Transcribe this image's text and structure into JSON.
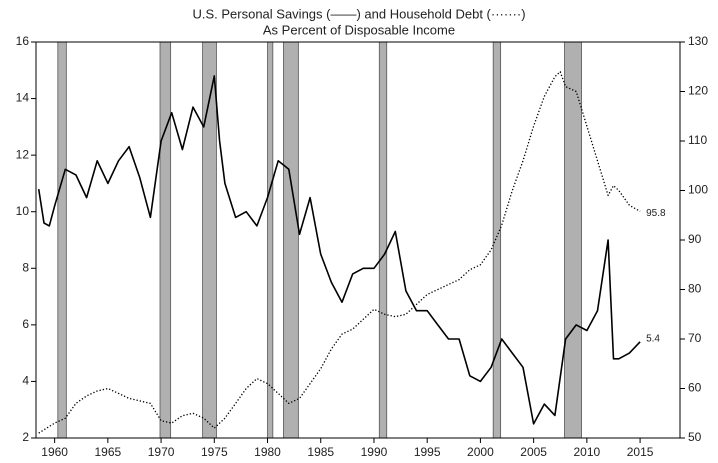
{
  "chart_data": {
    "type": "line",
    "title": "U.S. Personal Savings (——) and Household Debt (·······)",
    "subtitle": "As Percent of Disposable Income",
    "xlim": [
      1958.25,
      2018.75
    ],
    "xticks": [
      1960,
      1965,
      1970,
      1975,
      1980,
      1985,
      1990,
      1995,
      2000,
      2005,
      2010,
      2015
    ],
    "ylim": [
      2,
      16
    ],
    "yticks": [
      2,
      4,
      6,
      8,
      10,
      12,
      14,
      16
    ],
    "y2lim": [
      50,
      130
    ],
    "y2ticks": [
      50,
      60,
      70,
      80,
      90,
      100,
      110,
      120,
      130
    ],
    "recessions": [
      [
        1960.3,
        1961.1
      ],
      [
        1969.9,
        1970.9
      ],
      [
        1973.9,
        1975.2
      ],
      [
        1980.0,
        1980.5
      ],
      [
        1981.5,
        1982.9
      ],
      [
        1990.5,
        1991.2
      ],
      [
        2001.2,
        2001.9
      ],
      [
        2007.9,
        2009.5
      ]
    ],
    "series": [
      {
        "name": "U.S. Personal Savings",
        "color": "#000000",
        "style": "solid",
        "axis": "y",
        "x": [
          1958.5,
          1959,
          1959.5,
          1960,
          1961,
          1962,
          1963,
          1964,
          1965,
          1966,
          1967,
          1968,
          1969,
          1970,
          1971,
          1972,
          1973,
          1974,
          1975,
          1975.5,
          1976,
          1977,
          1978,
          1979,
          1980,
          1981,
          1982,
          1983,
          1984,
          1985,
          1986,
          1987,
          1988,
          1989,
          1990,
          1991,
          1992,
          1993,
          1994,
          1995,
          1996,
          1997,
          1998,
          1999,
          2000,
          2001,
          2002,
          2003,
          2004,
          2005,
          2006,
          2007,
          2008,
          2009,
          2010,
          2011,
          2012,
          2012.5,
          2013,
          2014,
          2015
        ],
        "values": [
          10.8,
          9.6,
          9.5,
          10.2,
          11.5,
          11.3,
          10.5,
          11.8,
          11.0,
          11.8,
          12.3,
          11.2,
          9.8,
          12.5,
          13.5,
          12.2,
          13.7,
          13.0,
          14.8,
          12.5,
          11.0,
          9.8,
          10.0,
          9.5,
          10.5,
          11.8,
          11.5,
          9.2,
          10.5,
          8.5,
          7.5,
          6.8,
          7.8,
          8.0,
          8.0,
          8.5,
          9.3,
          7.2,
          6.5,
          6.5,
          6.0,
          5.5,
          5.5,
          4.2,
          4.0,
          4.5,
          5.5,
          5.0,
          4.5,
          2.5,
          3.2,
          2.8,
          5.5,
          6.0,
          5.8,
          6.5,
          9.0,
          4.8,
          4.8,
          5.0,
          5.4
        ]
      },
      {
        "name": "Household Debt",
        "color": "#000000",
        "style": "dotted",
        "axis": "y2",
        "x": [
          1958.5,
          1960,
          1961,
          1962,
          1963,
          1964,
          1965,
          1966,
          1967,
          1968,
          1969,
          1970,
          1971,
          1972,
          1973,
          1974,
          1975,
          1976,
          1977,
          1978,
          1979,
          1980,
          1981,
          1982,
          1983,
          1984,
          1985,
          1986,
          1987,
          1988,
          1989,
          1990,
          1991,
          1992,
          1993,
          1994,
          1995,
          1996,
          1997,
          1998,
          1999,
          2000,
          2001,
          2002,
          2003,
          2004,
          2005,
          2006,
          2007,
          2007.5,
          2008,
          2009,
          2010,
          2011,
          2012,
          2012.5,
          2013,
          2014,
          2015
        ],
        "values": [
          51,
          53,
          54,
          57,
          58.5,
          59.5,
          60,
          59,
          58,
          57.5,
          57,
          53.5,
          53,
          54.5,
          55,
          54,
          52,
          54,
          57,
          60,
          62,
          61,
          59,
          57,
          58,
          61,
          64,
          68,
          71,
          72,
          74,
          76,
          75,
          74.5,
          75,
          77,
          79,
          80,
          81,
          82,
          84,
          85,
          88,
          93,
          100,
          106,
          113,
          119,
          123,
          124,
          121,
          120,
          113,
          106,
          99,
          101,
          100,
          97,
          95.8
        ]
      }
    ]
  }
}
